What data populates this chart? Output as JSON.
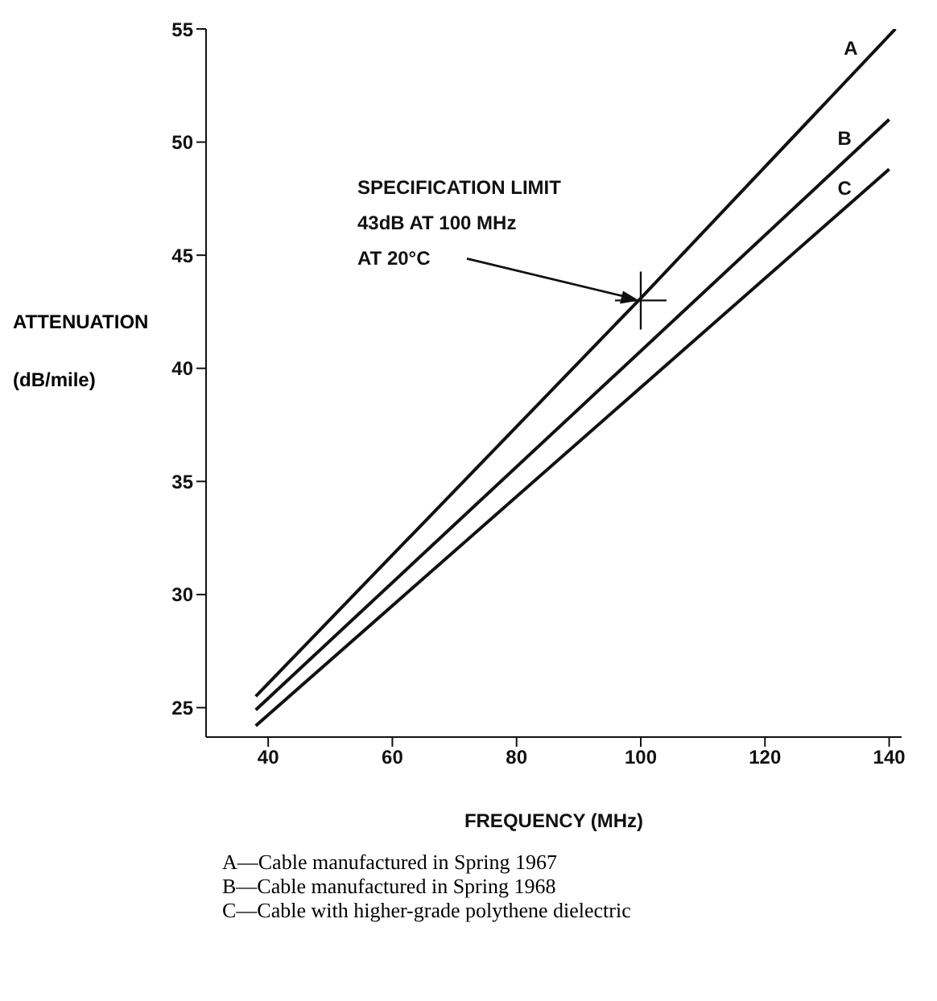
{
  "chart_data": {
    "type": "line",
    "xlabel": "FREQUENCY (MHz)",
    "ylabel": "ATTENUATION\n(dB/mile)",
    "series": [
      {
        "name": "A",
        "color": "#111111",
        "x": [
          38,
          100,
          141
        ],
        "values": [
          25.5,
          43.1,
          55
        ]
      },
      {
        "name": "B",
        "color": "#111111",
        "x": [
          38,
          140
        ],
        "values": [
          24.9,
          51
        ]
      },
      {
        "name": "C",
        "color": "#111111",
        "x": [
          38,
          140
        ],
        "values": [
          24.2,
          48.8
        ]
      },
      {
        "type": "scatter",
        "color": "#111111",
        "marker": "cross",
        "x": [
          100
        ],
        "values": [
          43
        ]
      }
    ],
    "xlim": [
      30,
      142
    ],
    "xticks": [
      40,
      60,
      80,
      100,
      120,
      140
    ],
    "ylim": [
      23.7,
      55
    ],
    "yticks": [
      25,
      30,
      35,
      40,
      45,
      50,
      55
    ],
    "legend": false,
    "annotations": [
      {
        "text": "SPECIFICATION LIMIT\n43dB AT 100 MHz\nAT 20°C",
        "x": 100,
        "y": 43
      },
      "A—Cable manufactured in Spring 1967\nB—Cable manufactured in Spring 1968\nC—Cable with higher-grade polythene dielectric"
    ]
  }
}
